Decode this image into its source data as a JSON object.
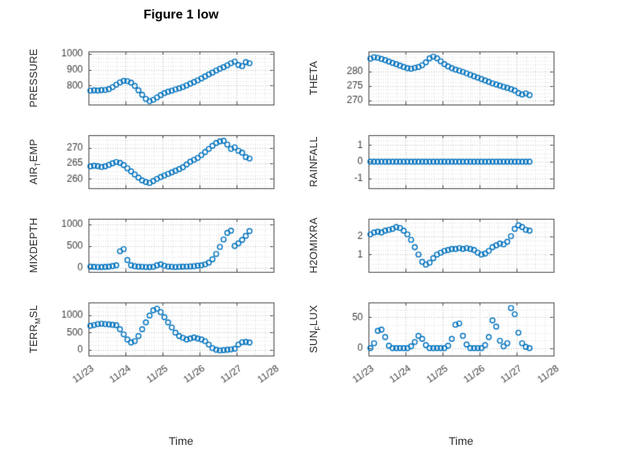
{
  "figure": {
    "title": "Figure 1 low",
    "xlabel": "Time",
    "accent": "#0072BD",
    "grid_major_color": "#b9b9b9",
    "grid_minor_color": "#dcdcdc"
  },
  "xaxis": {
    "lim": [
      23,
      28
    ],
    "ticks": [
      23,
      24,
      25,
      26,
      27,
      28
    ],
    "labels": [
      "11/23",
      "11/24",
      "11/25",
      "11/26",
      "11/27",
      "11/28"
    ],
    "sample_x": [
      23.05,
      23.15,
      23.25,
      23.35,
      23.45,
      23.55,
      23.65,
      23.75,
      23.85,
      23.95,
      24.05,
      24.15,
      24.25,
      24.35,
      24.45,
      24.55,
      24.65,
      24.75,
      24.85,
      24.95,
      25.05,
      25.15,
      25.25,
      25.35,
      25.45,
      25.55,
      25.65,
      25.75,
      25.85,
      25.95,
      26.05,
      26.15,
      26.25,
      26.35,
      26.45,
      26.55,
      26.65,
      26.75,
      26.85,
      26.95,
      27.05,
      27.15,
      27.25,
      27.35
    ]
  },
  "chart_data": [
    {
      "type": "scatter",
      "name": "PRESSURE",
      "ylabel_pre": "PRESSURE",
      "ylabel_sub": "",
      "ylabel_post": "",
      "ylim": [
        680,
        1015
      ],
      "yticks": [
        800,
        900,
        1000
      ],
      "y": [
        768,
        770,
        769,
        771,
        772,
        778,
        790,
        805,
        820,
        830,
        828,
        818,
        798,
        770,
        742,
        716,
        701,
        710,
        725,
        740,
        752,
        761,
        768,
        776,
        783,
        791,
        801,
        812,
        822,
        833,
        845,
        858,
        870,
        882,
        895,
        906,
        916,
        928,
        941,
        951,
        930,
        923,
        948,
        941
      ]
    },
    {
      "type": "scatter",
      "name": "THETA",
      "ylabel_pre": "THETA",
      "ylabel_sub": "",
      "ylabel_post": "",
      "ylim": [
        268.5,
        287
      ],
      "yticks": [
        270,
        275,
        280
      ],
      "y": [
        284.5,
        285.0,
        284.8,
        284.4,
        284.0,
        283.5,
        283.0,
        282.6,
        282.1,
        281.6,
        281.2,
        281.0,
        281.3,
        281.6,
        282.2,
        283.2,
        284.6,
        285.2,
        284.6,
        283.6,
        282.6,
        281.8,
        281.2,
        280.7,
        280.3,
        279.9,
        279.4,
        278.9,
        278.4,
        277.9,
        277.4,
        276.9,
        276.4,
        275.9,
        275.5,
        275.1,
        274.7,
        274.3,
        273.9,
        273.4,
        272.5,
        272.0,
        272.4,
        271.8
      ]
    },
    {
      "type": "scatter",
      "name": "AIRTEMP",
      "ylabel_pre": "AIR",
      "ylabel_sub": "T",
      "ylabel_post": "EMP",
      "ylim": [
        257,
        274
      ],
      "yticks": [
        260,
        265,
        270
      ],
      "y": [
        264.0,
        264.2,
        264.1,
        263.8,
        264.0,
        264.5,
        265.0,
        265.4,
        265.1,
        264.4,
        263.4,
        262.4,
        261.4,
        260.4,
        259.5,
        259.0,
        258.7,
        259.3,
        260.0,
        260.6,
        261.1,
        261.6,
        262.1,
        262.6,
        263.1,
        263.7,
        264.6,
        265.5,
        266.1,
        266.7,
        267.6,
        268.6,
        269.6,
        270.6,
        271.5,
        272.0,
        272.2,
        271.0,
        269.6,
        270.1,
        269.0,
        268.4,
        267.0,
        266.5
      ]
    },
    {
      "type": "scatter",
      "name": "RAINFALL",
      "ylabel_pre": "RAINFALL",
      "ylabel_sub": "",
      "ylabel_post": "",
      "ylim": [
        -1.6,
        1.6
      ],
      "yticks": [
        -1,
        0,
        1
      ],
      "y": [
        0,
        0,
        0,
        0,
        0,
        0,
        0,
        0,
        0,
        0,
        0,
        0,
        0,
        0,
        0,
        0,
        0,
        0,
        0,
        0,
        0,
        0,
        0,
        0,
        0,
        0,
        0,
        0,
        0,
        0,
        0,
        0,
        0,
        0,
        0,
        0,
        0,
        0,
        0,
        0,
        0,
        0,
        0,
        0
      ]
    },
    {
      "type": "scatter",
      "name": "MIXDEPTH",
      "ylabel_pre": "MIXDEPTH",
      "ylabel_sub": "",
      "ylabel_post": "",
      "ylim": [
        -90,
        1120
      ],
      "yticks": [
        0,
        500,
        1000
      ],
      "y": [
        30,
        25,
        22,
        20,
        24,
        30,
        42,
        60,
        380,
        430,
        180,
        60,
        40,
        30,
        26,
        22,
        20,
        26,
        60,
        85,
        50,
        32,
        26,
        22,
        26,
        30,
        32,
        36,
        40,
        52,
        62,
        82,
        120,
        200,
        320,
        480,
        650,
        800,
        850,
        500,
        560,
        640,
        730,
        840
      ]
    },
    {
      "type": "scatter",
      "name": "H2OMIXRA",
      "ylabel_pre": "H2OMIXRA",
      "ylabel_sub": "",
      "ylabel_post": "",
      "ylim": [
        0.05,
        2.95
      ],
      "yticks": [
        1,
        2
      ],
      "y": [
        2.1,
        2.2,
        2.25,
        2.2,
        2.3,
        2.35,
        2.4,
        2.5,
        2.45,
        2.3,
        2.1,
        1.8,
        1.4,
        1.0,
        0.6,
        0.45,
        0.55,
        0.8,
        1.0,
        1.1,
        1.2,
        1.25,
        1.3,
        1.3,
        1.35,
        1.3,
        1.35,
        1.3,
        1.25,
        1.1,
        1.0,
        1.05,
        1.2,
        1.4,
        1.5,
        1.6,
        1.55,
        1.7,
        2.0,
        2.4,
        2.6,
        2.5,
        2.35,
        2.3
      ]
    },
    {
      "type": "scatter",
      "name": "TERRMSL",
      "ylabel_pre": "TERR",
      "ylabel_sub": "M",
      "ylabel_post": "SL",
      "ylim": [
        -170,
        1380
      ],
      "yticks": [
        0,
        500,
        1000
      ],
      "y": [
        700,
        720,
        750,
        760,
        750,
        740,
        730,
        715,
        600,
        450,
        300,
        210,
        250,
        400,
        600,
        800,
        1000,
        1150,
        1200,
        1100,
        950,
        800,
        650,
        500,
        400,
        350,
        300,
        330,
        360,
        330,
        300,
        250,
        150,
        50,
        0,
        -20,
        -10,
        0,
        10,
        30,
        150,
        220,
        230,
        210
      ]
    },
    {
      "type": "scatter",
      "name": "SUNFLUX",
      "ylabel_pre": "SUN",
      "ylabel_sub": "F",
      "ylabel_post": "LUX",
      "ylim": [
        -12,
        74
      ],
      "yticks": [
        0,
        50
      ],
      "y": [
        0,
        8,
        28,
        30,
        18,
        4,
        0,
        0,
        0,
        0,
        0,
        3,
        10,
        20,
        15,
        5,
        0,
        0,
        0,
        0,
        0,
        4,
        15,
        38,
        40,
        20,
        6,
        0,
        0,
        0,
        0,
        5,
        18,
        45,
        35,
        12,
        3,
        8,
        65,
        55,
        25,
        8,
        2,
        0
      ]
    }
  ]
}
